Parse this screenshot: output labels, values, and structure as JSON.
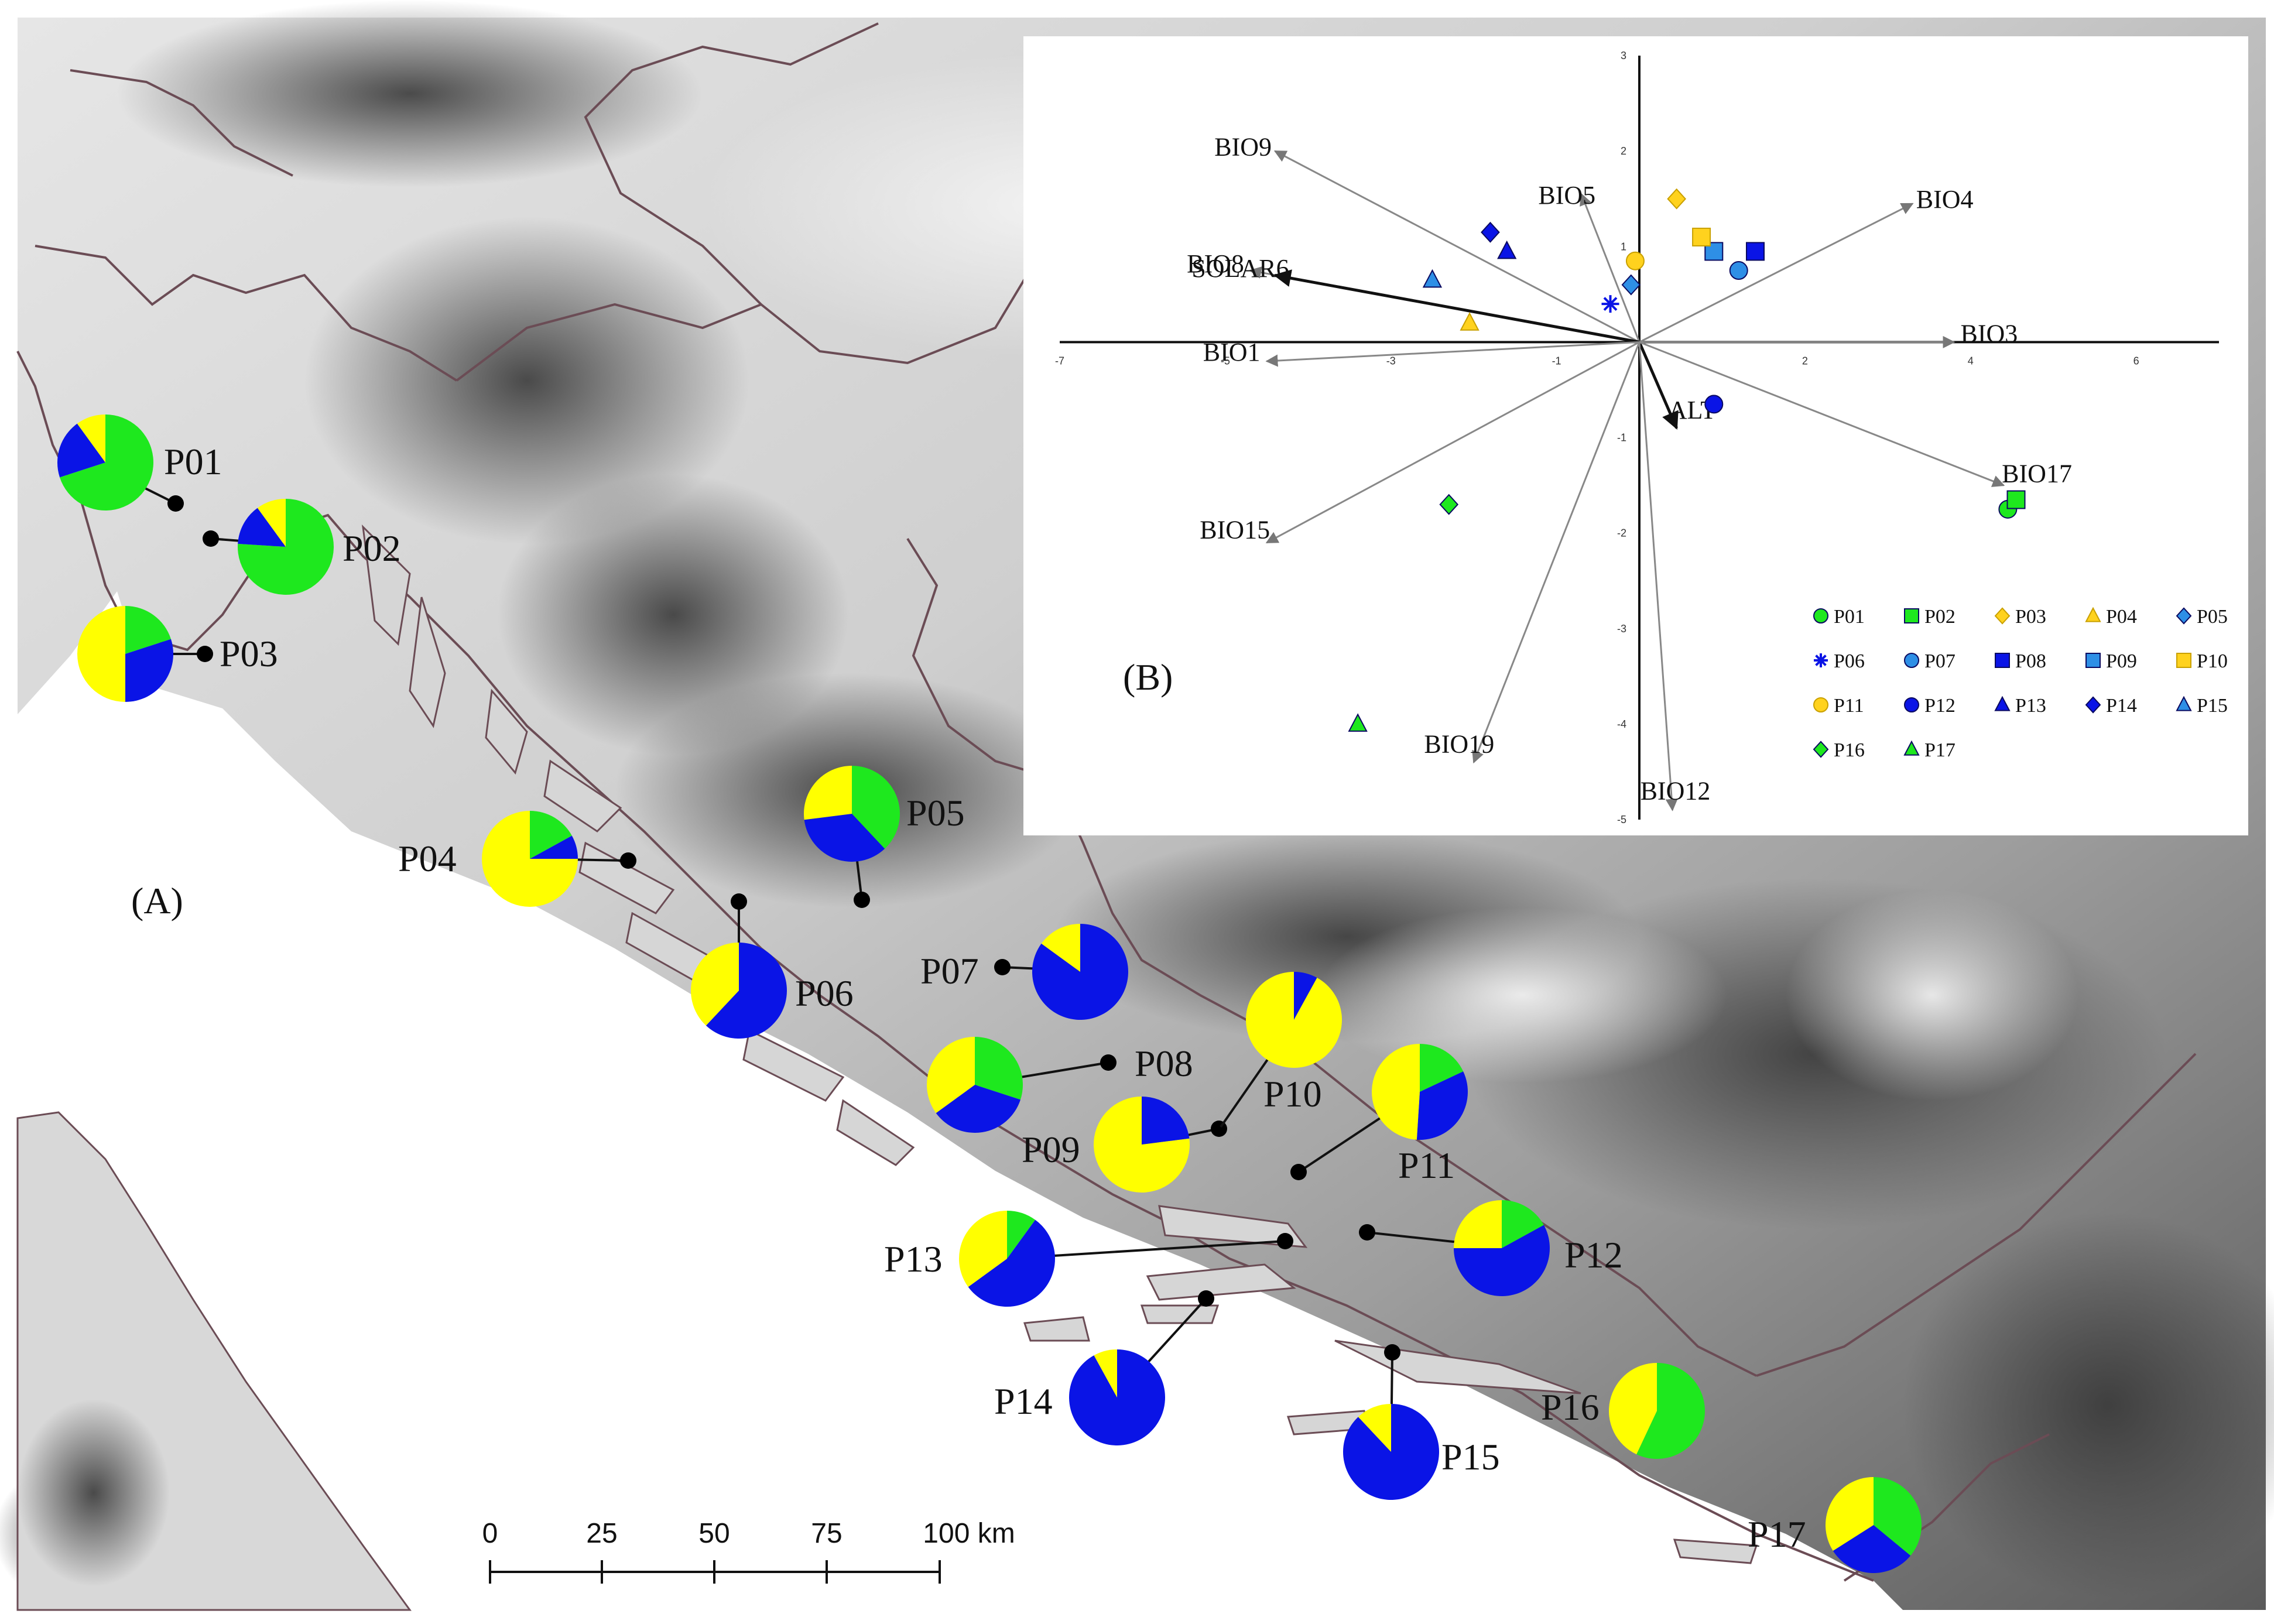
{
  "map": {
    "panel_label": "(A)",
    "colors": {
      "green": "#1ee81e",
      "blue": "#0a14e6",
      "yellow": "#ffff00",
      "light_blue": "#2e8fe6",
      "gold": "#ffd21e"
    },
    "populations": [
      {
        "id": "P01",
        "label": "P01",
        "proportions": {
          "green": 0.7,
          "blue": 0.2,
          "yellow": 0.1
        }
      },
      {
        "id": "P02",
        "label": "P02",
        "proportions": {
          "green": 0.76,
          "blue": 0.14,
          "yellow": 0.1
        }
      },
      {
        "id": "P03",
        "label": "P03",
        "proportions": {
          "green": 0.2,
          "blue": 0.3,
          "yellow": 0.5
        }
      },
      {
        "id": "P04",
        "label": "P04",
        "proportions": {
          "green": 0.17,
          "blue": 0.08,
          "yellow": 0.75
        }
      },
      {
        "id": "P05",
        "label": "P05",
        "proportions": {
          "green": 0.38,
          "blue": 0.35,
          "yellow": 0.27
        }
      },
      {
        "id": "P06",
        "label": "P06",
        "proportions": {
          "green": 0.0,
          "blue": 0.62,
          "yellow": 0.38
        }
      },
      {
        "id": "P07",
        "label": "P07",
        "proportions": {
          "green": 0.0,
          "blue": 0.85,
          "yellow": 0.15
        }
      },
      {
        "id": "P08",
        "label": "P08",
        "proportions": {
          "green": 0.3,
          "blue": 0.35,
          "yellow": 0.35
        }
      },
      {
        "id": "P09",
        "label": "P09",
        "proportions": {
          "green": 0.0,
          "blue": 0.23,
          "yellow": 0.77
        }
      },
      {
        "id": "P10",
        "label": "P10",
        "proportions": {
          "green": 0.0,
          "blue": 0.08,
          "yellow": 0.92
        }
      },
      {
        "id": "P11",
        "label": "P11",
        "proportions": {
          "green": 0.18,
          "blue": 0.33,
          "yellow": 0.49
        }
      },
      {
        "id": "P12",
        "label": "P12",
        "proportions": {
          "green": 0.17,
          "blue": 0.58,
          "yellow": 0.25
        }
      },
      {
        "id": "P13",
        "label": "P13",
        "proportions": {
          "green": 0.1,
          "blue": 0.55,
          "yellow": 0.35
        }
      },
      {
        "id": "P14",
        "label": "P14",
        "proportions": {
          "green": 0.0,
          "blue": 0.92,
          "yellow": 0.08
        }
      },
      {
        "id": "P15",
        "label": "P15",
        "proportions": {
          "green": 0.0,
          "blue": 0.88,
          "yellow": 0.12
        }
      },
      {
        "id": "P16",
        "label": "P16",
        "proportions": {
          "green": 0.57,
          "blue": 0.0,
          "yellow": 0.43
        }
      },
      {
        "id": "P17",
        "label": "P17",
        "proportions": {
          "green": 0.36,
          "blue": 0.3,
          "yellow": 0.34
        }
      }
    ],
    "scale_bar": {
      "ticks": [
        "0",
        "25",
        "50",
        "75",
        "100 km"
      ]
    }
  },
  "chart_data": {
    "type": "scatter",
    "panel_label": "(B)",
    "xlim": [
      -7,
      7
    ],
    "ylim": [
      -5,
      3
    ],
    "x_ticks": [
      "-7",
      "-5",
      "-3",
      "-1",
      "2",
      "4",
      "6"
    ],
    "y_ticks": [
      "3",
      "2",
      "1",
      "-1",
      "-2",
      "-3",
      "-4",
      "-5"
    ],
    "vectors": [
      {
        "name": "BIO9",
        "x": -4.4,
        "y": 2.0
      },
      {
        "name": "BIO5",
        "x": -0.7,
        "y": 1.55
      },
      {
        "name": "BIO4",
        "x": 3.3,
        "y": 1.45
      },
      {
        "name": "BIO8",
        "x": -4.7,
        "y": 0.75
      },
      {
        "name": "SOLAR6",
        "x": -4.4,
        "y": 0.7
      },
      {
        "name": "BIO3",
        "x": 3.8,
        "y": 0.0
      },
      {
        "name": "BIO1",
        "x": -4.5,
        "y": -0.2
      },
      {
        "name": "ALT",
        "x": 0.45,
        "y": -0.9
      },
      {
        "name": "BIO17",
        "x": 4.4,
        "y": -1.5
      },
      {
        "name": "BIO15",
        "x": -4.5,
        "y": -2.1
      },
      {
        "name": "BIO19",
        "x": -2.0,
        "y": -4.4
      },
      {
        "name": "BIO12",
        "x": 0.4,
        "y": -4.9
      }
    ],
    "points": [
      {
        "name": "P01",
        "x": 4.45,
        "y": -1.75,
        "marker": "circle",
        "color": "#1ee81e"
      },
      {
        "name": "P02",
        "x": 4.55,
        "y": -1.65,
        "marker": "square",
        "color": "#1ee81e"
      },
      {
        "name": "P03",
        "x": 0.45,
        "y": 1.5,
        "marker": "diamond",
        "color": "#ffd21e"
      },
      {
        "name": "P04",
        "x": -2.05,
        "y": 0.2,
        "marker": "triangle",
        "color": "#ffd21e"
      },
      {
        "name": "P05",
        "x": -0.1,
        "y": 0.6,
        "marker": "diamond",
        "color": "#2e8fe6"
      },
      {
        "name": "P06",
        "x": -0.35,
        "y": 0.4,
        "marker": "asterisk",
        "color": "#0a14e6"
      },
      {
        "name": "P07",
        "x": 1.2,
        "y": 0.75,
        "marker": "circle",
        "color": "#2e8fe6"
      },
      {
        "name": "P08",
        "x": 1.4,
        "y": 0.95,
        "marker": "square",
        "color": "#0a14e6"
      },
      {
        "name": "P09",
        "x": 0.9,
        "y": 0.95,
        "marker": "square",
        "color": "#2e8fe6"
      },
      {
        "name": "P10",
        "x": 0.75,
        "y": 1.1,
        "marker": "square",
        "color": "#ffd21e"
      },
      {
        "name": "P11",
        "x": -0.05,
        "y": 0.85,
        "marker": "circle",
        "color": "#ffd21e"
      },
      {
        "name": "P12",
        "x": 0.9,
        "y": -0.65,
        "marker": "circle",
        "color": "#0a14e6"
      },
      {
        "name": "P13",
        "x": -1.6,
        "y": 0.95,
        "marker": "triangle",
        "color": "#0a14e6"
      },
      {
        "name": "P14",
        "x": -1.8,
        "y": 1.15,
        "marker": "diamond",
        "color": "#0a14e6"
      },
      {
        "name": "P15",
        "x": -2.5,
        "y": 0.65,
        "marker": "triangle",
        "color": "#2e8fe6"
      },
      {
        "name": "P16",
        "x": -2.3,
        "y": -1.7,
        "marker": "diamond",
        "color": "#1ee81e"
      },
      {
        "name": "P17",
        "x": -3.4,
        "y": -4.0,
        "marker": "triangle",
        "color": "#1ee81e"
      }
    ],
    "legend": [
      "P01",
      "P02",
      "P03",
      "P04",
      "P05",
      "P06",
      "P07",
      "P08",
      "P09",
      "P10",
      "P11",
      "P12",
      "P13",
      "P14",
      "P15",
      "P16",
      "P17"
    ],
    "legend_placement": "bottom-right"
  }
}
